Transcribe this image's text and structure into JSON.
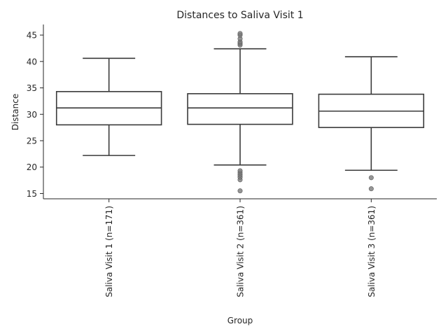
{
  "chart_data": {
    "type": "box",
    "title": "Distances to Saliva Visit 1",
    "xlabel": "Group",
    "ylabel": "Distance",
    "ylim": [
      14,
      47
    ],
    "yticks": [
      15,
      20,
      25,
      30,
      35,
      40,
      45
    ],
    "grid": false,
    "groups": [
      {
        "label": "Saliva Visit 1 (n=171)",
        "whisker_low": 22.2,
        "q1": 28.0,
        "median": 31.2,
        "q3": 34.3,
        "whisker_high": 40.6,
        "outliers": []
      },
      {
        "label": "Saliva Visit 2 (n=361)",
        "whisker_low": 20.4,
        "q1": 28.1,
        "median": 31.2,
        "q3": 33.9,
        "whisker_high": 42.4,
        "outliers": [
          15.5,
          17.6,
          18.1,
          18.5,
          18.9,
          19.3,
          43.1,
          43.4,
          43.7,
          44.3,
          45.0,
          45.3
        ]
      },
      {
        "label": "Saliva Visit 3 (n=361)",
        "whisker_low": 19.4,
        "q1": 27.5,
        "median": 30.6,
        "q3": 33.8,
        "whisker_high": 40.9,
        "outliers": [
          15.9,
          18.0
        ]
      }
    ]
  }
}
